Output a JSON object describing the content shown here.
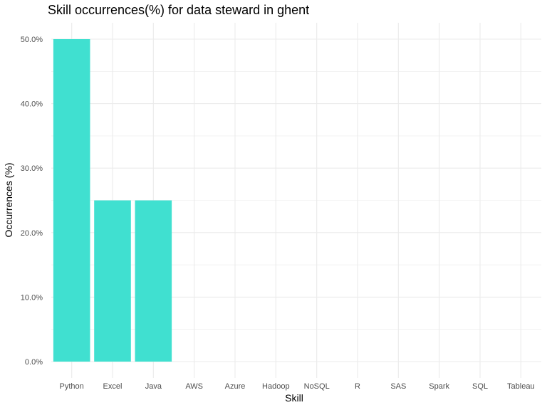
{
  "chart_data": {
    "type": "bar",
    "title": "Skill occurrences(%) for data steward in ghent",
    "xlabel": "Skill",
    "ylabel": "Occurrences (%)",
    "categories": [
      "Python",
      "Excel",
      "Java",
      "AWS",
      "Azure",
      "Hadoop",
      "NoSQL",
      "R",
      "SAS",
      "Spark",
      "SQL",
      "Tableau"
    ],
    "values": [
      50,
      25,
      25,
      0,
      0,
      0,
      0,
      0,
      0,
      0,
      0,
      0
    ],
    "ylim": [
      0,
      50
    ],
    "yticks": [
      0,
      10,
      20,
      30,
      40,
      50
    ],
    "ytick_labels": [
      "0.0%",
      "10.0%",
      "20.0%",
      "30.0%",
      "40.0%",
      "50.0%"
    ],
    "bar_color": "#40E0D0",
    "grid": true,
    "grid_color": "#ebebeb",
    "legend": "none"
  }
}
